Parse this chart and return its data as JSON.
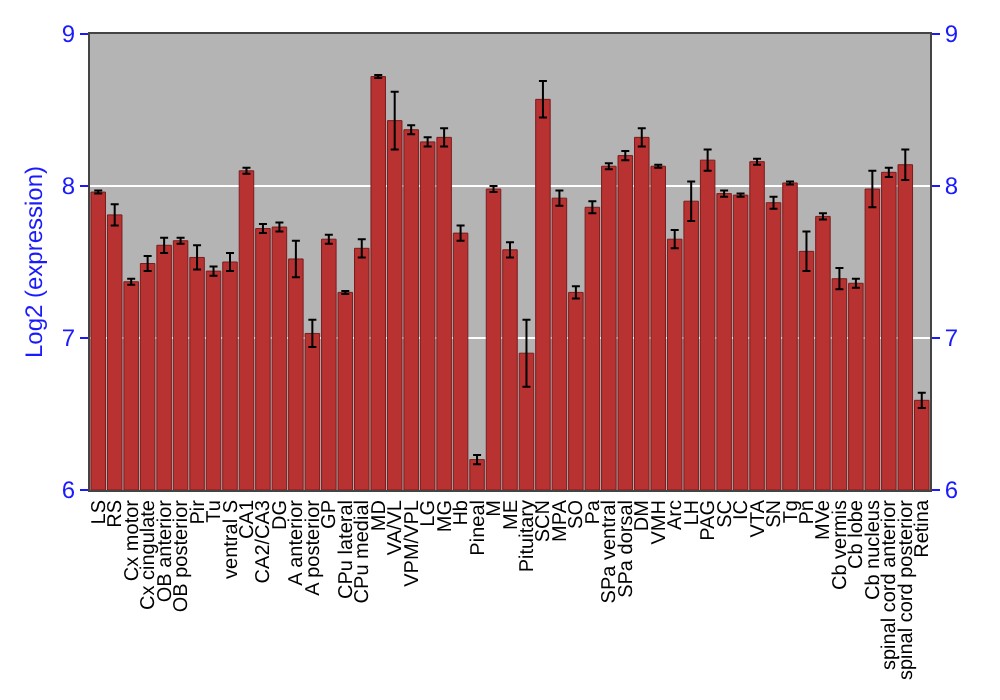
{
  "chart_data": {
    "type": "bar",
    "ylabel": "Log2 (expression)",
    "categories": [
      "LS",
      "RS",
      "Cx motor",
      "Cx cingulate",
      "OB anterior",
      "OB posterior",
      "Pir",
      "Tu",
      "ventral S",
      "CA1",
      "CA2/CA3",
      "DG",
      "A anterior",
      "A posterior",
      "GP",
      "CPu lateral",
      "CPu medial",
      "MD",
      "VA/VL",
      "VPM/VPL",
      "LG",
      "MG",
      "Hb",
      "Pineal",
      "M",
      "ME",
      "Pituitary",
      "SCN",
      "MPA",
      "SO",
      "Pa",
      "SPa ventral",
      "SPa dorsal",
      "DM",
      "VMH",
      "Arc",
      "LH",
      "PAG",
      "SC",
      "IC",
      "VTA",
      "SN",
      "Tg",
      "Pn",
      "MVe",
      "Cb vermis",
      "Cb lobe",
      "Cb nucleus",
      "spinal cord anterior",
      "spinal cord posterior",
      "Retina"
    ],
    "values": [
      7.96,
      7.81,
      7.37,
      7.49,
      7.61,
      7.64,
      7.53,
      7.44,
      7.5,
      8.1,
      7.72,
      7.73,
      7.52,
      7.03,
      7.65,
      7.3,
      7.59,
      8.72,
      8.43,
      8.37,
      8.29,
      8.32,
      7.69,
      6.2,
      7.98,
      7.58,
      6.9,
      8.57,
      7.92,
      7.3,
      7.86,
      8.13,
      8.2,
      8.32,
      8.13,
      7.65,
      7.9,
      8.17,
      7.95,
      7.94,
      8.16,
      7.89,
      8.02,
      7.57,
      7.8,
      7.39,
      7.36,
      7.98,
      8.09,
      8.14,
      6.59
    ],
    "errors": [
      0.01,
      0.07,
      0.02,
      0.05,
      0.05,
      0.02,
      0.08,
      0.03,
      0.06,
      0.02,
      0.03,
      0.03,
      0.12,
      0.09,
      0.03,
      0.01,
      0.06,
      0.01,
      0.19,
      0.03,
      0.03,
      0.06,
      0.05,
      0.03,
      0.02,
      0.05,
      0.22,
      0.12,
      0.05,
      0.04,
      0.04,
      0.02,
      0.03,
      0.06,
      0.01,
      0.06,
      0.13,
      0.07,
      0.02,
      0.01,
      0.02,
      0.04,
      0.01,
      0.13,
      0.02,
      0.07,
      0.03,
      0.12,
      0.03,
      0.1,
      0.05
    ],
    "color": "#b83232",
    "ylim": [
      6,
      9
    ],
    "yticks": [
      6,
      7,
      8,
      9
    ],
    "y2lim": [
      6,
      9
    ],
    "y2ticks": [
      6,
      7,
      8,
      9
    ],
    "grid": "y"
  }
}
